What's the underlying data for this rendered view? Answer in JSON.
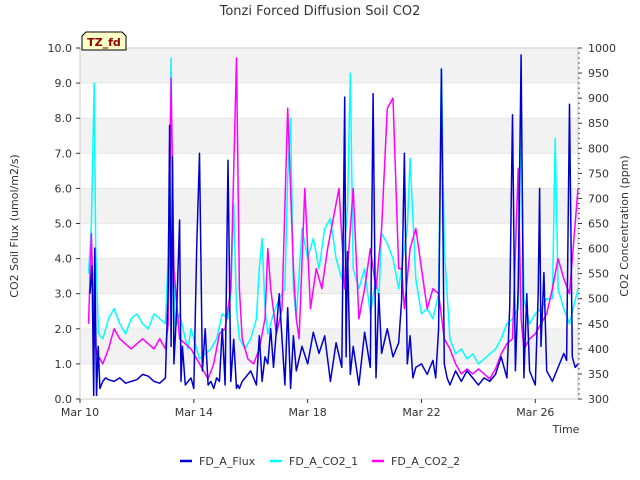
{
  "chart_data": {
    "type": "line",
    "title": "Tonzi Forced Diffusion Soil CO2",
    "badge": "TZ_fd",
    "xlabel": "Time",
    "ylabel_left": "CO2 Soil Flux (umol/m2/s)",
    "ylabel_right": "CO2 Concentration (ppm)",
    "xlim": [
      0,
      17.5
    ],
    "ylim_left": [
      0,
      10
    ],
    "ylim_right": [
      300,
      1000
    ],
    "x_ticks": [
      {
        "pos": 0,
        "label": "Mar 10"
      },
      {
        "pos": 4,
        "label": "Mar 14"
      },
      {
        "pos": 8,
        "label": "Mar 18"
      },
      {
        "pos": 12,
        "label": "Mar 22"
      },
      {
        "pos": 16,
        "label": "Mar 26"
      }
    ],
    "y_ticks_left": [
      "0.0",
      "1.0",
      "2.0",
      "3.0",
      "4.0",
      "5.0",
      "6.0",
      "7.0",
      "8.0",
      "9.0",
      "10.0"
    ],
    "y_ticks_right": [
      "300",
      "350",
      "400",
      "450",
      "500",
      "550",
      "600",
      "650",
      "700",
      "750",
      "800",
      "850",
      "900",
      "950",
      "1000"
    ],
    "grid_bands": true,
    "legend_position": "bottom",
    "series": [
      {
        "name": "FD_A_CO2_1",
        "color": "#00ffff",
        "axis": "right",
        "x": [
          0.3,
          0.4,
          0.5,
          0.55,
          0.65,
          0.8,
          1.0,
          1.2,
          1.4,
          1.6,
          1.8,
          2.0,
          2.2,
          2.4,
          2.6,
          2.8,
          3.0,
          3.1,
          3.2,
          3.25,
          3.35,
          3.5,
          3.7,
          3.8,
          3.9,
          4.0,
          4.2,
          4.4,
          4.6,
          4.8,
          5.0,
          5.2,
          5.3,
          5.4,
          5.5,
          5.6,
          5.8,
          6.0,
          6.2,
          6.3,
          6.4,
          6.5,
          6.6,
          6.8,
          7.0,
          7.2,
          7.3,
          7.4,
          7.5,
          7.6,
          7.8,
          8.0,
          8.2,
          8.4,
          8.6,
          8.8,
          9.0,
          9.2,
          9.4,
          9.5,
          9.6,
          9.8,
          10.0,
          10.2,
          10.4,
          10.5,
          10.6,
          10.8,
          11.0,
          11.2,
          11.4,
          11.5,
          11.6,
          11.8,
          12.0,
          12.2,
          12.4,
          12.6,
          12.7,
          12.8,
          13.0,
          13.2,
          13.4,
          13.6,
          13.8,
          14.0,
          14.2,
          14.4,
          14.6,
          14.8,
          15.0,
          15.2,
          15.4,
          15.5,
          15.6,
          15.8,
          16.0,
          16.2,
          16.4,
          16.6,
          16.7,
          16.8,
          17.0,
          17.2,
          17.5
        ],
        "y": [
          550,
          650,
          930,
          600,
          430,
          420,
          460,
          480,
          450,
          430,
          460,
          470,
          450,
          440,
          470,
          460,
          450,
          580,
          980,
          700,
          440,
          470,
          420,
          400,
          440,
          420,
          380,
          390,
          400,
          420,
          470,
          460,
          510,
          690,
          480,
          420,
          400,
          420,
          460,
          560,
          620,
          480,
          430,
          470,
          500,
          520,
          740,
          860,
          520,
          460,
          640,
          580,
          620,
          560,
          640,
          660,
          580,
          540,
          680,
          950,
          560,
          520,
          560,
          470,
          540,
          500,
          630,
          610,
          580,
          520,
          600,
          640,
          780,
          540,
          470,
          480,
          460,
          510,
          960,
          600,
          420,
          390,
          400,
          380,
          390,
          370,
          380,
          390,
          400,
          420,
          450,
          460,
          480,
          880,
          500,
          450,
          470,
          480,
          500,
          500,
          820,
          520,
          480,
          450,
          520
        ]
      },
      {
        "name": "FD_A_CO2_2",
        "color": "#ff00ff",
        "axis": "right",
        "x": [
          0.3,
          0.4,
          0.5,
          0.6,
          0.8,
          1.0,
          1.2,
          1.4,
          1.6,
          1.8,
          2.0,
          2.2,
          2.4,
          2.6,
          2.8,
          3.0,
          3.1,
          3.2,
          3.3,
          3.5,
          3.7,
          3.9,
          4.1,
          4.3,
          4.5,
          4.7,
          4.9,
          5.1,
          5.3,
          5.5,
          5.6,
          5.7,
          5.9,
          6.1,
          6.3,
          6.5,
          6.6,
          6.7,
          6.9,
          7.1,
          7.3,
          7.5,
          7.6,
          7.7,
          7.9,
          8.1,
          8.3,
          8.5,
          8.7,
          8.9,
          9.1,
          9.3,
          9.4,
          9.6,
          9.8,
          10.0,
          10.2,
          10.4,
          10.6,
          10.8,
          11.0,
          11.2,
          11.3,
          11.4,
          11.6,
          11.8,
          12.0,
          12.2,
          12.4,
          12.6,
          12.8,
          13.0,
          13.2,
          13.4,
          13.6,
          13.8,
          14.0,
          14.2,
          14.4,
          14.6,
          14.8,
          15.0,
          15.2,
          15.4,
          15.5,
          15.6,
          15.8,
          16.0,
          16.2,
          16.4,
          16.6,
          16.8,
          17.0,
          17.2,
          17.5
        ],
        "y": [
          450,
          630,
          420,
          390,
          370,
          400,
          440,
          420,
          410,
          400,
          410,
          420,
          410,
          400,
          420,
          400,
          450,
          940,
          560,
          420,
          410,
          400,
          380,
          360,
          340,
          370,
          430,
          440,
          520,
          980,
          520,
          420,
          380,
          370,
          400,
          460,
          600,
          520,
          430,
          480,
          880,
          560,
          460,
          420,
          720,
          480,
          560,
          520,
          600,
          660,
          720,
          520,
          560,
          720,
          460,
          520,
          600,
          520,
          640,
          880,
          900,
          560,
          560,
          480,
          600,
          640,
          560,
          480,
          520,
          510,
          420,
          400,
          370,
          350,
          360,
          350,
          360,
          350,
          340,
          360,
          390,
          410,
          420,
          760,
          460,
          400,
          420,
          430,
          450,
          470,
          520,
          580,
          540,
          510,
          720
        ]
      },
      {
        "name": "FD_A_Flux",
        "color": "#0000cd",
        "axis": "left",
        "x": [
          0.35,
          0.42,
          0.48,
          0.52,
          0.58,
          0.64,
          0.7,
          0.8,
          0.9,
          1.0,
          1.2,
          1.4,
          1.6,
          1.8,
          2.0,
          2.2,
          2.4,
          2.6,
          2.8,
          3.0,
          3.1,
          3.15,
          3.2,
          3.25,
          3.3,
          3.4,
          3.5,
          3.55,
          3.6,
          3.7,
          3.8,
          3.9,
          4.0,
          4.1,
          4.2,
          4.3,
          4.4,
          4.5,
          4.6,
          4.7,
          4.8,
          4.9,
          5.0,
          5.1,
          5.2,
          5.3,
          5.4,
          5.5,
          5.55,
          5.6,
          5.7,
          5.8,
          6.0,
          6.2,
          6.3,
          6.4,
          6.5,
          6.6,
          6.7,
          6.8,
          7.0,
          7.2,
          7.3,
          7.4,
          7.5,
          7.6,
          7.8,
          8.0,
          8.2,
          8.4,
          8.6,
          8.8,
          9.0,
          9.2,
          9.3,
          9.35,
          9.4,
          9.5,
          9.6,
          9.8,
          10.0,
          10.2,
          10.3,
          10.4,
          10.5,
          10.6,
          10.8,
          11.0,
          11.2,
          11.3,
          11.4,
          11.5,
          11.6,
          11.7,
          11.8,
          12.0,
          12.2,
          12.4,
          12.5,
          12.6,
          12.7,
          12.8,
          12.9,
          13.0,
          13.2,
          13.4,
          13.6,
          13.8,
          14.0,
          14.2,
          14.4,
          14.6,
          14.8,
          15.0,
          15.1,
          15.2,
          15.3,
          15.4,
          15.5,
          15.6,
          15.7,
          15.8,
          16.0,
          16.1,
          16.15,
          16.2,
          16.3,
          16.4,
          16.6,
          16.8,
          17.0,
          17.1,
          17.2,
          17.3,
          17.4,
          17.5
        ],
        "y": [
          3.0,
          3.8,
          0.1,
          4.3,
          0.1,
          1.5,
          0.3,
          0.5,
          0.6,
          0.55,
          0.5,
          0.6,
          0.45,
          0.5,
          0.55,
          0.7,
          0.65,
          0.5,
          0.45,
          0.6,
          3.2,
          7.8,
          1.5,
          6.9,
          1.0,
          2.6,
          5.1,
          0.5,
          1.5,
          0.4,
          0.5,
          0.6,
          0.3,
          4.3,
          7.0,
          0.8,
          2.0,
          0.4,
          0.5,
          0.3,
          0.6,
          0.5,
          2.0,
          0.4,
          6.8,
          0.5,
          1.7,
          0.3,
          0.4,
          0.3,
          0.5,
          0.6,
          0.8,
          0.4,
          1.8,
          0.5,
          1.2,
          1.0,
          2.0,
          0.9,
          3.0,
          0.4,
          2.6,
          0.3,
          1.8,
          0.8,
          1.5,
          1.0,
          1.9,
          1.3,
          1.8,
          0.5,
          1.6,
          0.9,
          8.6,
          1.2,
          4.2,
          0.7,
          1.5,
          0.4,
          1.9,
          0.9,
          8.7,
          0.6,
          3.0,
          1.3,
          2.0,
          1.2,
          1.6,
          2.8,
          7.0,
          1.0,
          1.8,
          0.6,
          0.9,
          1.0,
          0.7,
          1.1,
          0.6,
          2.0,
          9.4,
          1.0,
          0.6,
          0.4,
          0.8,
          0.5,
          0.8,
          0.6,
          0.4,
          0.6,
          0.5,
          0.7,
          1.2,
          0.6,
          2.6,
          8.1,
          0.8,
          3.2,
          9.8,
          0.6,
          3.0,
          0.8,
          0.4,
          3.0,
          6.0,
          1.5,
          3.6,
          0.8,
          0.5,
          0.9,
          1.3,
          1.1,
          8.4,
          1.2,
          0.9,
          1.0
        ]
      }
    ]
  }
}
